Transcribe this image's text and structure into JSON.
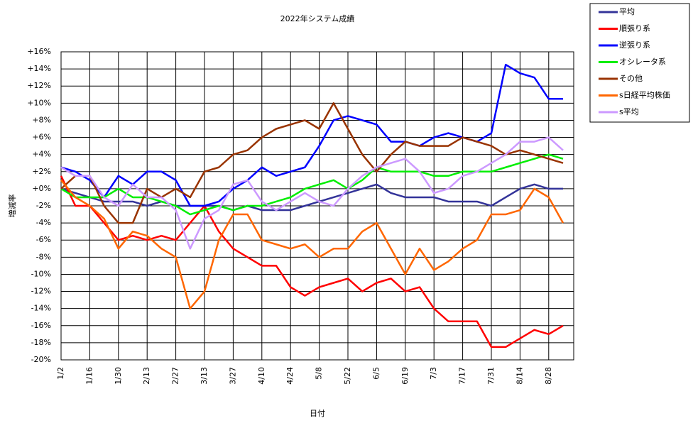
{
  "chart_data": {
    "type": "line",
    "title": "2022年システム成績",
    "x_label": "日付",
    "y_label": "増減率",
    "grid": true,
    "legend": "top-right",
    "categories": [
      "1/2",
      null,
      "1/16",
      null,
      "1/30",
      null,
      "2/13",
      null,
      "2/27",
      null,
      "3/13",
      null,
      "3/27",
      null,
      "4/10",
      null,
      "4/24",
      null,
      "5/8",
      null,
      "5/22",
      null,
      "6/5",
      null,
      "6/19",
      null,
      "7/3",
      null,
      "7/17",
      null,
      "7/31",
      null,
      "8/14",
      null,
      "8/28",
      null
    ],
    "ylim": [
      -20,
      16
    ],
    "yticks": [
      {
        "value": -20,
        "label": "-20%"
      },
      {
        "value": -18,
        "label": "-18%"
      },
      {
        "value": -16,
        "label": "-16%"
      },
      {
        "value": -14,
        "label": "-14%"
      },
      {
        "value": -12,
        "label": "-12%"
      },
      {
        "value": -10,
        "label": "-10%"
      },
      {
        "value": -8,
        "label": "-8%"
      },
      {
        "value": -6,
        "label": "-6%"
      },
      {
        "value": -4,
        "label": "-4%"
      },
      {
        "value": -2,
        "label": "-2%"
      },
      {
        "value": 0,
        "label": "+0%"
      },
      {
        "value": 2,
        "label": "+2%"
      },
      {
        "value": 4,
        "label": "+4%"
      },
      {
        "value": 6,
        "label": "+6%"
      },
      {
        "value": 8,
        "label": "+8%"
      },
      {
        "value": 10,
        "label": "+10%"
      },
      {
        "value": 12,
        "label": "+12%"
      },
      {
        "value": 14,
        "label": "+14%"
      },
      {
        "value": 16,
        "label": "+16%"
      }
    ],
    "series": [
      {
        "name": "平均",
        "color": "#333399",
        "values": [
          0,
          -0.5,
          -1,
          -1.5,
          -1.5,
          -1.5,
          -2,
          -1.5,
          -2,
          -2,
          -2,
          -2,
          -2.5,
          -2,
          -2.5,
          -2.5,
          -2.5,
          -2,
          -1.5,
          -1,
          -0.5,
          0,
          0.5,
          -0.5,
          -1,
          -1,
          -1,
          -1.5,
          -1.5,
          -1.5,
          -2,
          -1,
          0,
          0.5,
          0,
          0
        ]
      },
      {
        "name": "順張り系",
        "color": "#ff0000",
        "values": [
          1.5,
          -2,
          -2,
          -4,
          -6,
          -5.5,
          -6,
          -5.5,
          -6,
          -4,
          -2,
          -5,
          -7,
          -8,
          -9,
          -9,
          -11.5,
          -12.5,
          -11.5,
          -11,
          -10.5,
          -12,
          -11,
          -10.5,
          -12,
          -11.5,
          -14,
          -15.5,
          -15.5,
          -15.5,
          -18.5,
          -18.5,
          -17.5,
          -16.5,
          -17,
          -16
        ]
      },
      {
        "name": "逆張り系",
        "color": "#0000ff",
        "values": [
          2.5,
          2,
          1,
          -1,
          1.5,
          0.5,
          2,
          2,
          1,
          -2,
          -2,
          -1.5,
          0,
          1,
          2.5,
          1.5,
          2,
          2.5,
          5,
          8,
          8.5,
          8,
          7.5,
          5.5,
          5.5,
          5,
          6,
          6.5,
          6,
          5.5,
          6.5,
          14.5,
          13.5,
          13,
          10.5,
          10.5
        ]
      },
      {
        "name": "オシレータ系",
        "color": "#00ee00",
        "values": [
          0,
          -1,
          -1,
          -1,
          0,
          -1,
          -1,
          -1.5,
          -2,
          -3,
          -2.5,
          -2,
          -2.5,
          -2,
          -2,
          -1.5,
          -1,
          0,
          0.5,
          1,
          0,
          1,
          2.5,
          2,
          2,
          2,
          1.5,
          1.5,
          2,
          2,
          2,
          2.5,
          3,
          3.5,
          4,
          3.5
        ]
      },
      {
        "name": "その他",
        "color": "#993300",
        "values": [
          0,
          1.5,
          1.5,
          -2,
          -4,
          -4,
          0,
          -1,
          0,
          -1,
          2,
          2.5,
          4,
          4.5,
          6,
          7,
          7.5,
          8,
          7,
          10,
          7,
          4,
          2,
          4,
          5.5,
          5,
          5,
          5,
          6,
          5.5,
          5,
          4,
          4.5,
          4,
          3.5,
          3
        ]
      },
      {
        "name": "s日経平均株価",
        "color": "#ff6600",
        "values": [
          1,
          -1,
          -2,
          -3.5,
          -7,
          -5,
          -5.5,
          -7,
          -8,
          -14,
          -12,
          -6,
          -3,
          -3,
          -6,
          -6.5,
          -7,
          -6.5,
          -8,
          -7,
          -7,
          -5,
          -4,
          -7,
          -10,
          -7,
          -9.5,
          -8.5,
          -7,
          -6,
          -3,
          -3,
          -2.5,
          0,
          -1,
          -4
        ]
      },
      {
        "name": "s平均",
        "color": "#cc99ff",
        "values": [
          2.5,
          1.5,
          1.5,
          -1,
          -2,
          0.5,
          -1,
          -1,
          -2.5,
          -7,
          -3.5,
          -2.5,
          0.5,
          1,
          -1.5,
          -2.5,
          -1.5,
          -0.5,
          -1.5,
          -2,
          0,
          1.5,
          2.5,
          3,
          3.5,
          2,
          -0.5,
          0,
          1.5,
          2,
          3,
          4,
          5.5,
          5.5,
          6,
          4.5
        ]
      }
    ]
  }
}
